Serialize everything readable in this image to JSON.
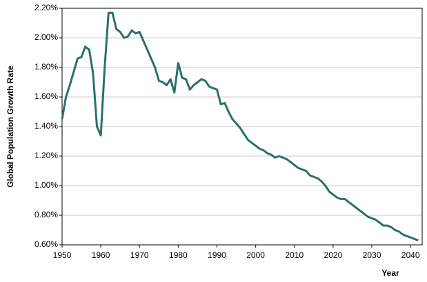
{
  "chart_data": {
    "type": "line",
    "x_label": "Year",
    "y_label": "Global Population Growth Rate",
    "x": [
      1950,
      1951,
      1952,
      1953,
      1954,
      1955,
      1956,
      1957,
      1958,
      1959,
      1960,
      1961,
      1962,
      1963,
      1964,
      1965,
      1966,
      1967,
      1968,
      1969,
      1970,
      1971,
      1972,
      1973,
      1974,
      1975,
      1976,
      1977,
      1978,
      1979,
      1980,
      1981,
      1982,
      1983,
      1984,
      1985,
      1986,
      1987,
      1988,
      1989,
      1990,
      1991,
      1992,
      1993,
      1994,
      1995,
      1996,
      1997,
      1998,
      1999,
      2000,
      2001,
      2002,
      2003,
      2004,
      2005,
      2006,
      2007,
      2008,
      2009,
      2010,
      2011,
      2012,
      2013,
      2014,
      2015,
      2016,
      2017,
      2018,
      2019,
      2020,
      2021,
      2022,
      2023,
      2024,
      2025,
      2026,
      2027,
      2028,
      2029,
      2030,
      2031,
      2032,
      2033,
      2034,
      2035,
      2036,
      2037,
      2038,
      2039,
      2040,
      2041,
      2042
    ],
    "series": [
      {
        "name": "Global Population Growth Rate",
        "color": "#2b7065",
        "values": [
          1.45,
          1.6,
          1.68,
          1.77,
          1.86,
          1.87,
          1.94,
          1.92,
          1.76,
          1.4,
          1.34,
          1.8,
          2.17,
          2.17,
          2.06,
          2.04,
          2.0,
          2.01,
          2.05,
          2.03,
          2.04,
          1.98,
          1.92,
          1.86,
          1.8,
          1.71,
          1.7,
          1.68,
          1.72,
          1.63,
          1.83,
          1.73,
          1.72,
          1.65,
          1.68,
          1.7,
          1.72,
          1.71,
          1.67,
          1.66,
          1.65,
          1.55,
          1.56,
          1.5,
          1.45,
          1.42,
          1.39,
          1.35,
          1.31,
          1.29,
          1.27,
          1.25,
          1.24,
          1.22,
          1.21,
          1.19,
          1.2,
          1.19,
          1.18,
          1.16,
          1.14,
          1.12,
          1.11,
          1.1,
          1.07,
          1.06,
          1.05,
          1.03,
          1.0,
          0.96,
          0.94,
          0.92,
          0.91,
          0.91,
          0.89,
          0.87,
          0.85,
          0.83,
          0.81,
          0.79,
          0.78,
          0.77,
          0.75,
          0.73,
          0.73,
          0.72,
          0.7,
          0.69,
          0.67,
          0.66,
          0.65,
          0.64,
          0.63
        ]
      }
    ],
    "xlim": [
      1950,
      2043
    ],
    "xticks": [
      1950,
      1960,
      1970,
      1980,
      1990,
      2000,
      2010,
      2020,
      2030,
      2040
    ],
    "ylim": [
      0.6,
      2.2
    ],
    "yticks": [
      {
        "value": 0.6,
        "label": "0.60%"
      },
      {
        "value": 0.8,
        "label": "0.80%"
      },
      {
        "value": 1.0,
        "label": "1.00%"
      },
      {
        "value": 1.2,
        "label": "1.20%"
      },
      {
        "value": 1.4,
        "label": "1.40%"
      },
      {
        "value": 1.6,
        "label": "1.60%"
      },
      {
        "value": 1.8,
        "label": "1.80%"
      },
      {
        "value": 2.0,
        "label": "2.00%"
      },
      {
        "value": 2.2,
        "label": "2.20%"
      }
    ],
    "grid": true
  }
}
